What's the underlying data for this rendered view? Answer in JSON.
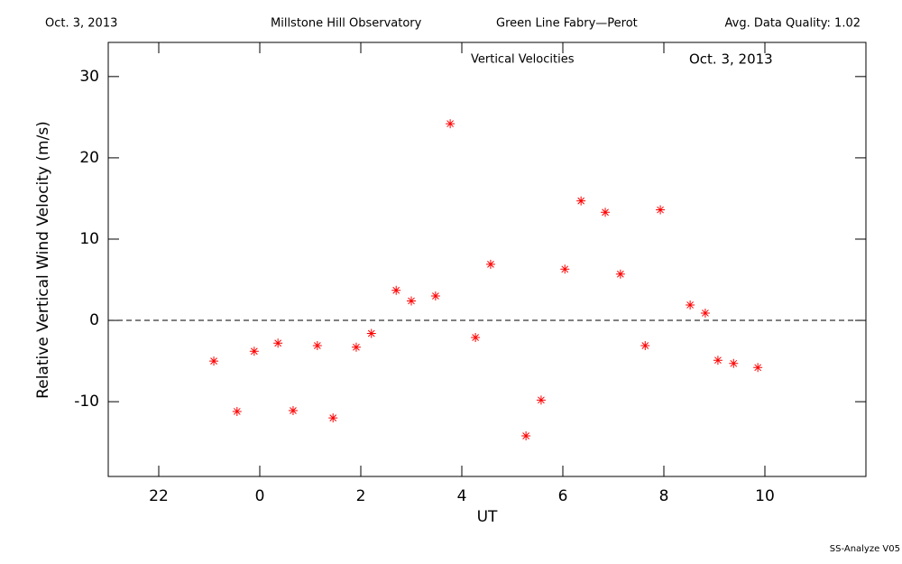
{
  "chart_data": {
    "type": "scatter",
    "header": [
      "Oct. 3, 2013",
      "Millstone Hill Observatory",
      "Green Line Fabry—Perot",
      "Avg. Data Quality: 1.02"
    ],
    "title": "Vertical Velocities",
    "subtitle": "Oct. 3, 2013",
    "footer": "SS-Analyze V05",
    "x_label": "UT",
    "y_label": "Relative Vertical Wind Velocity (m/s)",
    "color": "#ff0000",
    "marker": "asterisk",
    "hline": 0,
    "x": [
      23.09,
      23.55,
      23.89,
      24.36,
      24.66,
      25.14,
      25.45,
      25.91,
      26.21,
      26.7,
      27.0,
      27.48,
      27.77,
      28.27,
      28.57,
      29.27,
      29.57,
      30.04,
      30.36,
      30.84,
      31.14,
      31.63,
      31.93,
      32.52,
      32.82,
      33.07,
      33.38,
      33.86
    ],
    "values": [
      -5.0,
      -11.2,
      -3.8,
      -2.8,
      -11.1,
      -3.1,
      -12.0,
      -3.3,
      -1.6,
      3.7,
      2.4,
      3.0,
      24.2,
      -2.1,
      6.9,
      -14.2,
      -9.8,
      6.3,
      14.7,
      13.3,
      5.7,
      -3.1,
      13.6,
      1.9,
      0.9,
      -4.9,
      -5.3,
      -5.8
    ],
    "xlim": [
      21,
      36
    ],
    "xticks": [
      22,
      {
        "value": 24,
        "label": "0"
      },
      {
        "value": 26,
        "label": "2"
      },
      {
        "value": 28,
        "label": "4"
      },
      {
        "value": 30,
        "label": "6"
      },
      {
        "value": 32,
        "label": "8"
      },
      {
        "value": 34,
        "label": "10"
      }
    ],
    "ylim": [
      -19.2,
      34.2
    ],
    "yticks": [
      -10,
      0,
      10,
      20,
      30
    ]
  }
}
